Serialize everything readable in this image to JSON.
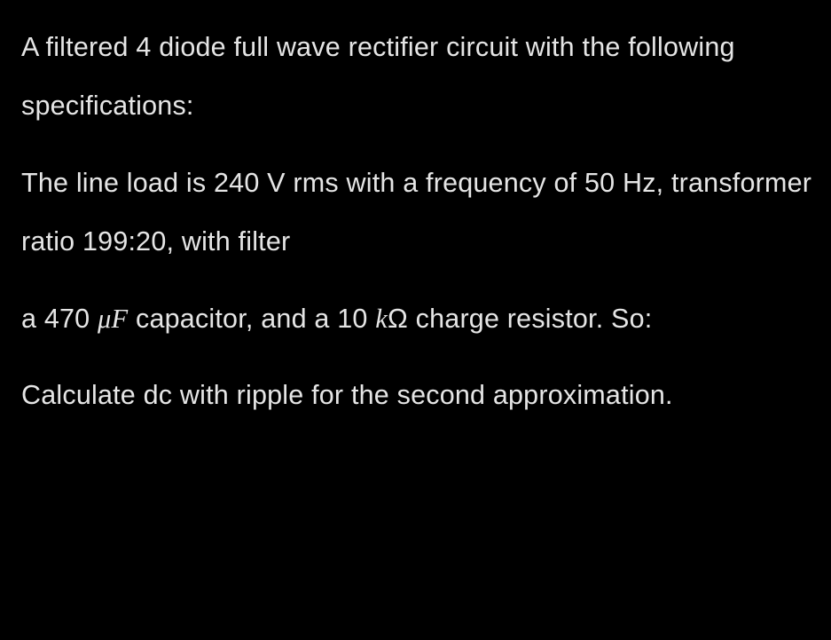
{
  "problem": {
    "p1": "A filtered 4 diode full wave rectifier circuit with the following specifications:",
    "p2_pre": " The line load is 240 V rms with a frequency of 50 Hz, transformer ratio 199:20, with filter",
    "p3_a": " a 470 ",
    "p3_muF": "μF",
    "p3_b": " capacitor, and a 10  ",
    "p3_k": "k",
    "p3_c": "Ω charge resistor.  So:",
    "p4": "Calculate dc with ripple for the second approximation."
  }
}
